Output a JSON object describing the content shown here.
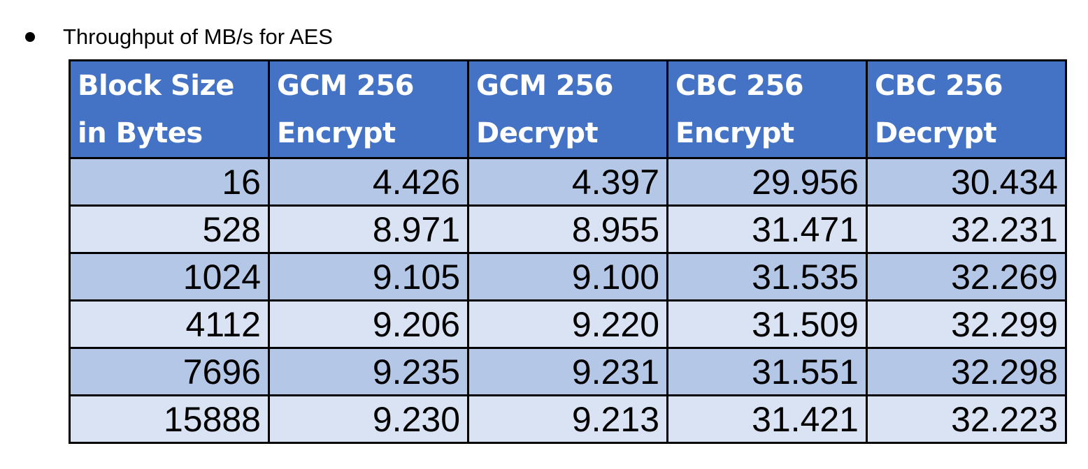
{
  "bullet": {
    "text": "Throughput of MB/s for AES"
  },
  "table": {
    "colors": {
      "header_bg": "#4472c4",
      "header_text": "#ffffff",
      "row_dark": "#b4c7e7",
      "row_light": "#dae3f3",
      "border": "#000000"
    },
    "headers": [
      [
        "Block Size",
        "in Bytes"
      ],
      [
        "GCM 256",
        "Encrypt"
      ],
      [
        "GCM 256",
        "Decrypt"
      ],
      [
        "CBC 256",
        "Encrypt"
      ],
      [
        "CBC 256",
        "Decrypt"
      ]
    ],
    "rows": [
      [
        "16",
        "4.426",
        "4.397",
        "29.956",
        "30.434"
      ],
      [
        "528",
        "8.971",
        "8.955",
        "31.471",
        "32.231"
      ],
      [
        "1024",
        "9.105",
        "9.100",
        "31.535",
        "32.269"
      ],
      [
        "4112",
        "9.206",
        "9.220",
        "31.509",
        "32.299"
      ],
      [
        "7696",
        "9.235",
        "9.231",
        "31.551",
        "32.298"
      ],
      [
        "15888",
        "9.230",
        "9.213",
        "31.421",
        "32.223"
      ]
    ]
  }
}
